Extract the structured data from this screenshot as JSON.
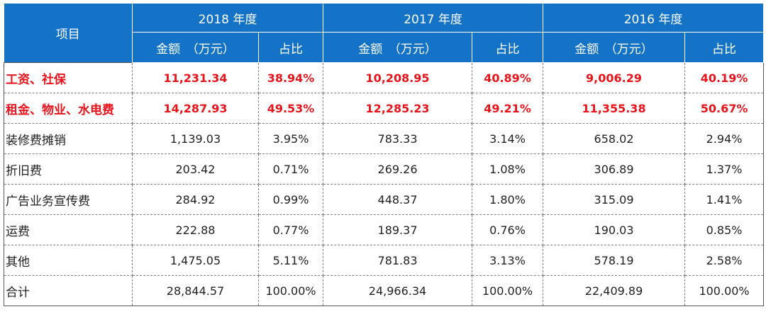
{
  "header": {
    "item": "项目",
    "years": [
      "2018 年度",
      "2017 年度",
      "2016 年度"
    ],
    "amount": "金额　（万元）",
    "ratio": "占比"
  },
  "rows": [
    {
      "name": "工资、社保",
      "v": [
        "11,231.34",
        "38.94%",
        "10,208.95",
        "40.89%",
        "9,006.29",
        "40.19%"
      ],
      "highlight": true
    },
    {
      "name": "租金、物业、水电费",
      "v": [
        "14,287.93",
        "49.53%",
        "12,285.23",
        "49.21%",
        "11,355.38",
        "50.67%"
      ],
      "highlight": true
    },
    {
      "name": "装修费摊销",
      "v": [
        "1,139.03",
        "3.95%",
        "783.33",
        "3.14%",
        "658.02",
        "2.94%"
      ],
      "highlight": false
    },
    {
      "name": "折旧费",
      "v": [
        "203.42",
        "0.71%",
        "269.26",
        "1.08%",
        "306.89",
        "1.37%"
      ],
      "highlight": false
    },
    {
      "name": "广告业务宣传费",
      "v": [
        "284.92",
        "0.99%",
        "448.37",
        "1.80%",
        "315.09",
        "1.41%"
      ],
      "highlight": false
    },
    {
      "name": "运费",
      "v": [
        "222.88",
        "0.77%",
        "189.37",
        "0.76%",
        "190.03",
        "0.85%"
      ],
      "highlight": false
    },
    {
      "name": "其他",
      "v": [
        "1,475.05",
        "5.11%",
        "781.83",
        "3.13%",
        "578.19",
        "2.58%"
      ],
      "highlight": false
    },
    {
      "name": "合计",
      "v": [
        "28,844.57",
        "100.00%",
        "24,966.34",
        "100.00%",
        "22,409.89",
        "100.00%"
      ],
      "highlight": false
    }
  ],
  "colors": {
    "header_bg": "#1573c7",
    "highlight_text": "#e8141c"
  }
}
